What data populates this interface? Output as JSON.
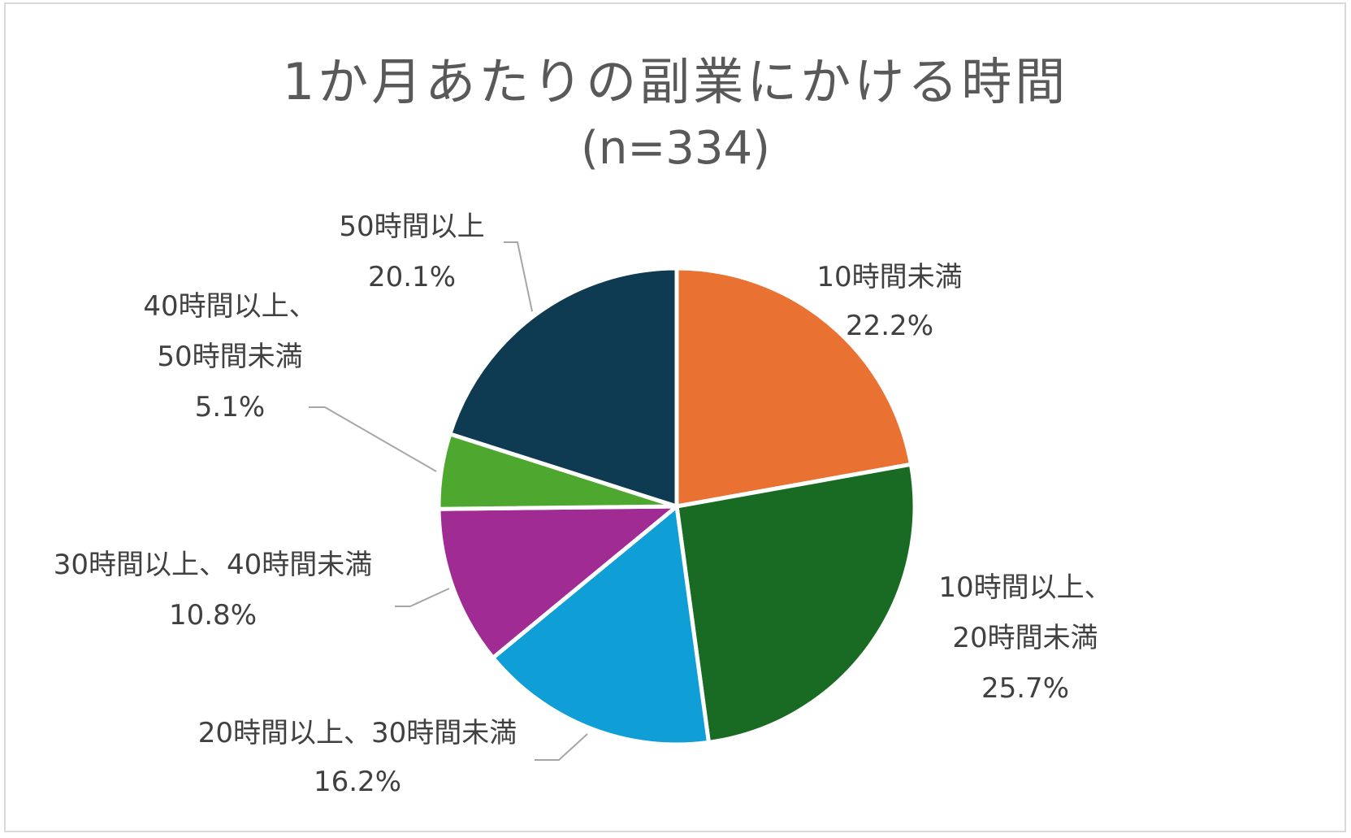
{
  "chart_data": {
    "type": "pie",
    "title": "1か月あたりの副業にかける時間",
    "subtitle": "(n=334)",
    "legend": "none",
    "slices": [
      {
        "name": "10時間未満",
        "label_lines": [
          "10時間未満"
        ],
        "pct_text": "22.2%",
        "value": 22.2,
        "color": "#E97132"
      },
      {
        "name": "10時間以上、20時間未満",
        "label_lines": [
          "10時間以上、",
          "20時間未満"
        ],
        "pct_text": "25.7%",
        "value": 25.7,
        "color": "#196B24"
      },
      {
        "name": "20時間以上、30時間未満",
        "label_lines": [
          "20時間以上、30時間未満"
        ],
        "pct_text": "16.2%",
        "value": 16.2,
        "color": "#0F9ED5"
      },
      {
        "name": "30時間以上、40時間未満",
        "label_lines": [
          "30時間以上、40時間未満"
        ],
        "pct_text": "10.8%",
        "value": 10.8,
        "color": "#A02B93"
      },
      {
        "name": "40時間以上、50時間未満",
        "label_lines": [
          "40時間以上、",
          "50時間未満"
        ],
        "pct_text": "5.1%",
        "value": 5.1,
        "color": "#4EA72E"
      },
      {
        "name": "50時間以上",
        "label_lines": [
          "50時間以上"
        ],
        "pct_text": "20.1%",
        "value": 20.1,
        "color": "#0E3A52"
      }
    ]
  }
}
